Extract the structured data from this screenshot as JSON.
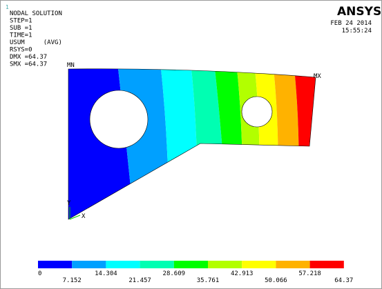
{
  "plot_id": "1",
  "info": [
    "NODAL SOLUTION",
    "STEP=1",
    "SUB =1",
    "TIME=1",
    "USUM     (AVG)",
    "RSYS=0",
    "DMX =64.37",
    "SMX =64.37"
  ],
  "logo": "ANSYS",
  "date": "FEB 24 2014",
  "time": "15:55:24",
  "markers": {
    "min": "MN",
    "max": "MX"
  },
  "axes": {
    "y": "Y",
    "x": "X"
  },
  "legend": {
    "levels": [
      0,
      7.152,
      14.304,
      21.457,
      28.609,
      35.761,
      42.913,
      50.066,
      57.218,
      64.37
    ],
    "colors": [
      "#0000ff",
      "#00a0ff",
      "#00ffff",
      "#00ffb2",
      "#00ff00",
      "#b2ff00",
      "#ffff00",
      "#ffb200",
      "#ff0000"
    ]
  }
}
